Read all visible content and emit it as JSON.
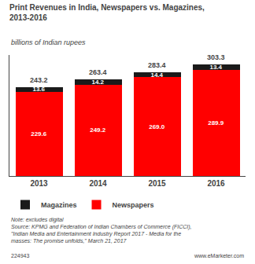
{
  "chart_data": {
    "type": "bar",
    "stacked": true,
    "title": "Print Revenues in India, Newspapers vs. Magazines,\n2013-2016",
    "subtitle": "billions of Indian rupees",
    "categories": [
      "2013",
      "2014",
      "2015",
      "2016"
    ],
    "series": [
      {
        "name": "Newspapers",
        "color": "#ff0000",
        "values": [
          229.6,
          249.2,
          269.0,
          289.9
        ],
        "value_labels": [
          "229.6",
          "249.2",
          "269.0",
          "289.9"
        ]
      },
      {
        "name": "Magazines",
        "color": "#1a1a1a",
        "values": [
          13.6,
          14.2,
          14.4,
          13.4
        ],
        "value_labels": [
          "13.6",
          "14.2",
          "14.4",
          "13.4"
        ]
      }
    ],
    "data_labels": true,
    "annotations": [
      {
        "category": "2013",
        "value": 243.2,
        "text": "243.2"
      },
      {
        "category": "2014",
        "value": 263.4,
        "text": "263.4"
      },
      {
        "category": "2015",
        "value": 283.4,
        "text": "283.4"
      },
      {
        "category": "2016",
        "value": 303.3,
        "text": "303.3"
      }
    ],
    "ylim": [
      0,
      330
    ],
    "yticks": [],
    "grid": false,
    "legend": "bottom left",
    "tick_labels": "x",
    "note": "Note: excludes digital\nSource: KPMG and Federation of Indian Chambers of Commerce (FICCI),\n\"Indian Media and Entertainment Industry Report 2017 - Media for the\nmasses: The promise unfolds,\" March 21, 2017",
    "footer_left": "224943",
    "footer_right": "www.eMarketer.com"
  }
}
